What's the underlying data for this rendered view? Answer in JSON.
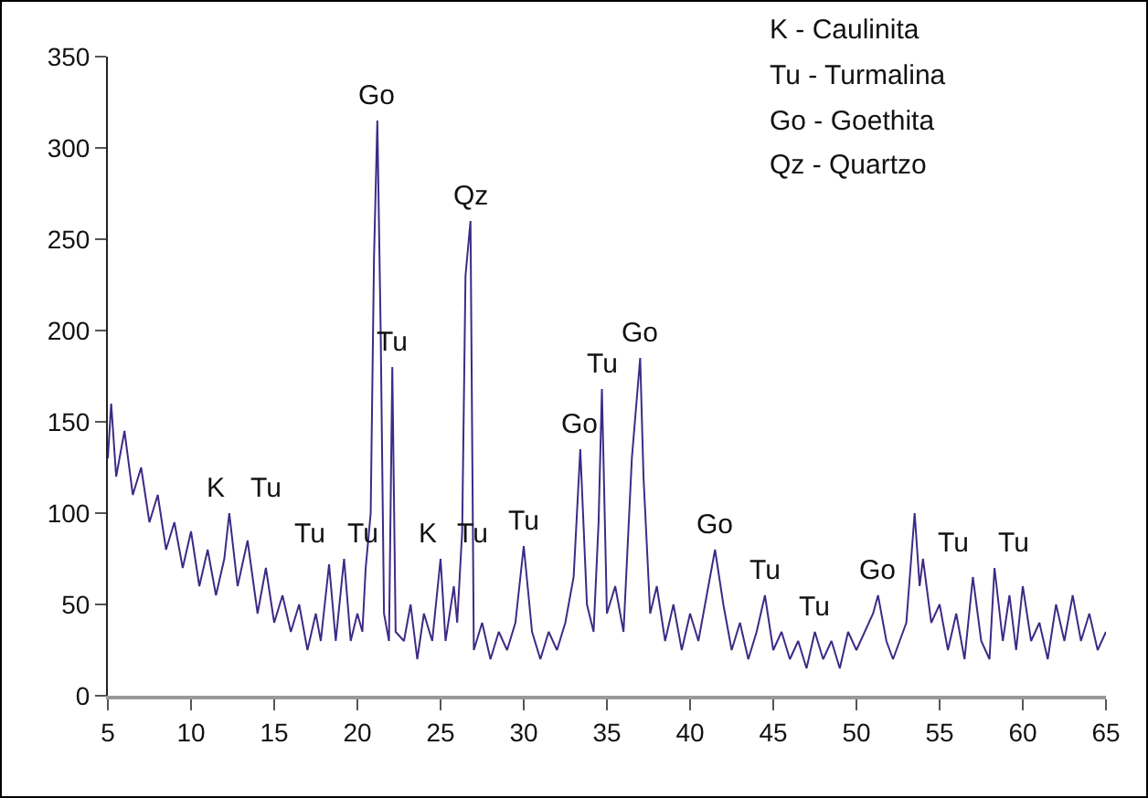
{
  "chart_data": {
    "type": "line",
    "x": [
      5,
      5.2,
      5.5,
      6,
      6.5,
      7,
      7.5,
      8,
      8.5,
      9,
      9.5,
      10,
      10.5,
      11,
      11.5,
      12,
      12.3,
      12.8,
      13.4,
      14,
      14.5,
      15,
      15.5,
      16,
      16.5,
      17,
      17.5,
      17.8,
      18.3,
      18.7,
      19.2,
      19.6,
      20,
      20.3,
      20.5,
      20.8,
      21,
      21.2,
      21.4,
      21.6,
      21.9,
      22.1,
      22.3,
      22.8,
      23.2,
      23.6,
      24,
      24.5,
      25,
      25.3,
      25.8,
      26,
      26.3,
      26.5,
      26.8,
      27,
      27.5,
      28,
      28.5,
      29,
      29.5,
      30,
      30.5,
      31,
      31.5,
      32,
      32.5,
      33,
      33.4,
      33.8,
      34.2,
      34.5,
      34.7,
      35,
      35.5,
      36,
      36.5,
      37,
      37.2,
      37.6,
      38,
      38.5,
      39,
      39.5,
      40,
      40.5,
      41,
      41.5,
      42,
      42.5,
      43,
      43.5,
      44,
      44.5,
      45,
      45.5,
      46,
      46.5,
      47,
      47.5,
      48,
      48.5,
      49,
      49.5,
      50,
      51,
      51.3,
      51.8,
      52.2,
      53,
      53.5,
      53.8,
      54,
      54.5,
      55,
      55.5,
      56,
      56.5,
      57,
      57.5,
      58,
      58.3,
      58.8,
      59.2,
      59.6,
      60,
      60.5,
      61,
      61.5,
      62,
      62.5,
      63,
      63.5,
      64,
      64.5,
      65
    ],
    "series": [
      {
        "color": "#3f2a86",
        "values": [
          130,
          160,
          120,
          145,
          110,
          125,
          95,
          110,
          80,
          95,
          70,
          90,
          60,
          80,
          55,
          75,
          100,
          60,
          85,
          45,
          70,
          40,
          55,
          35,
          50,
          25,
          45,
          30,
          72,
          30,
          75,
          30,
          45,
          35,
          70,
          100,
          240,
          315,
          200,
          45,
          30,
          180,
          35,
          30,
          50,
          20,
          45,
          30,
          75,
          30,
          60,
          40,
          90,
          230,
          260,
          25,
          40,
          20,
          35,
          25,
          40,
          82,
          35,
          20,
          35,
          25,
          40,
          65,
          135,
          50,
          35,
          95,
          168,
          45,
          60,
          35,
          130,
          185,
          120,
          45,
          60,
          30,
          50,
          25,
          45,
          30,
          55,
          80,
          50,
          25,
          40,
          20,
          35,
          55,
          25,
          35,
          20,
          30,
          15,
          35,
          20,
          30,
          15,
          35,
          25,
          45,
          55,
          30,
          20,
          40,
          100,
          60,
          75,
          40,
          50,
          25,
          45,
          20,
          65,
          30,
          20,
          70,
          30,
          55,
          25,
          60,
          30,
          40,
          20,
          50,
          30,
          55,
          30,
          45,
          25,
          35
        ]
      }
    ],
    "xlim": [
      5,
      65
    ],
    "xticks": [
      5,
      10,
      15,
      20,
      25,
      30,
      35,
      40,
      45,
      50,
      55,
      60,
      65
    ],
    "ylim": [
      0,
      350
    ],
    "yticks": [
      0,
      50,
      100,
      150,
      200,
      250,
      300,
      350
    ],
    "grid": false,
    "marker": "none",
    "line_style": "solid",
    "annotations": [
      "K - Caulinita",
      "Tu - Turmalina",
      "Go - Goethita",
      "Qz - Quartzo",
      {
        "text": "Go",
        "x": 21.2,
        "y": 315
      },
      {
        "text": "Tu",
        "x": 22.1,
        "y": 180
      },
      {
        "text": "Qz",
        "x": 26.8,
        "y": 260
      },
      {
        "text": "K",
        "x": 12.3,
        "y": 100
      },
      {
        "text": "Tu",
        "x": 13.4,
        "y": 85
      },
      {
        "text": "Tu",
        "x": 18.3,
        "y": 72
      },
      {
        "text": "Tu",
        "x": 19.2,
        "y": 75
      },
      {
        "text": "K",
        "x": 25,
        "y": 75
      },
      {
        "text": "Tu",
        "x": 25.8,
        "y": 60
      },
      {
        "text": "Tu",
        "x": 30,
        "y": 82
      },
      {
        "text": "Go",
        "x": 33.4,
        "y": 135
      },
      {
        "text": "Tu",
        "x": 34.7,
        "y": 168
      },
      {
        "text": "Go",
        "x": 37,
        "y": 185
      },
      {
        "text": "Go",
        "x": 41.5,
        "y": 80
      },
      {
        "text": "Tu",
        "x": 44.5,
        "y": 55
      },
      {
        "text": "Tu",
        "x": 47.5,
        "y": 35
      },
      {
        "text": "Go",
        "x": 51.3,
        "y": 55
      },
      {
        "text": "Tu",
        "x": 57,
        "y": 65
      },
      {
        "text": "Tu",
        "x": 58.3,
        "y": 70
      }
    ]
  }
}
